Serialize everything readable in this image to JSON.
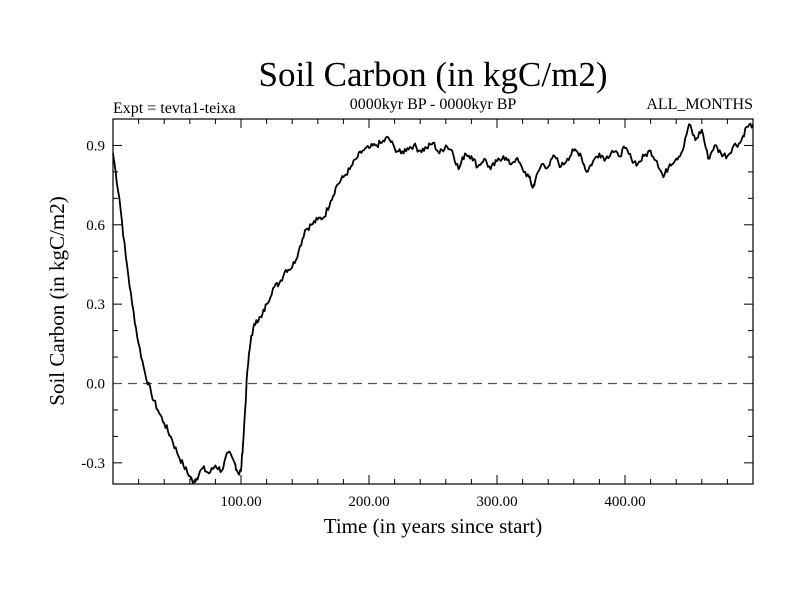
{
  "chart_data": {
    "type": "line",
    "title": "Soil Carbon (in kgC/m2)",
    "header_left": "Expt = tevta1-teixa",
    "header_center": "0000kyr BP - 0000kyr BP",
    "header_right": "ALL_MONTHS",
    "xlabel": "Time (in years since start)",
    "ylabel": "Soil Carbon (in kgC/m2)",
    "xlim": [
      0,
      500
    ],
    "ylim": [
      -0.38,
      1.0
    ],
    "x_ticks": [
      100,
      200,
      300,
      400
    ],
    "x_tick_labels": [
      "100.00",
      "200.00",
      "300.00",
      "400.00"
    ],
    "y_ticks": [
      -0.3,
      0.0,
      0.3,
      0.6,
      0.9
    ],
    "y_tick_labels": [
      "-0.3",
      "0.0",
      "0.3",
      "0.6",
      "0.9"
    ],
    "reference_line": {
      "y": 0.0,
      "style": "dashed"
    },
    "series": [
      {
        "name": "Soil Carbon",
        "x": [
          0,
          5,
          10,
          15,
          20,
          25,
          30,
          35,
          40,
          45,
          50,
          55,
          60,
          62,
          65,
          70,
          75,
          80,
          85,
          90,
          95,
          98,
          100,
          102,
          105,
          108,
          112,
          116,
          120,
          125,
          130,
          135,
          140,
          145,
          150,
          155,
          160,
          165,
          170,
          175,
          180,
          185,
          190,
          195,
          200,
          205,
          210,
          215,
          220,
          225,
          230,
          235,
          240,
          245,
          250,
          255,
          260,
          265,
          270,
          275,
          280,
          285,
          290,
          295,
          300,
          305,
          310,
          315,
          320,
          325,
          328,
          330,
          335,
          340,
          345,
          350,
          355,
          360,
          365,
          370,
          375,
          380,
          385,
          390,
          395,
          400,
          405,
          410,
          415,
          420,
          425,
          430,
          435,
          440,
          445,
          450,
          455,
          460,
          465,
          470,
          475,
          480,
          485,
          490,
          495,
          500
        ],
        "values": [
          0.87,
          0.7,
          0.48,
          0.3,
          0.15,
          0.04,
          -0.04,
          -0.1,
          -0.15,
          -0.2,
          -0.26,
          -0.31,
          -0.35,
          -0.37,
          -0.36,
          -0.32,
          -0.34,
          -0.31,
          -0.33,
          -0.26,
          -0.3,
          -0.34,
          -0.33,
          -0.2,
          0.05,
          0.18,
          0.24,
          0.25,
          0.3,
          0.36,
          0.38,
          0.43,
          0.44,
          0.5,
          0.58,
          0.6,
          0.62,
          0.63,
          0.69,
          0.75,
          0.78,
          0.81,
          0.85,
          0.88,
          0.89,
          0.9,
          0.91,
          0.93,
          0.89,
          0.87,
          0.89,
          0.9,
          0.88,
          0.89,
          0.91,
          0.87,
          0.9,
          0.88,
          0.81,
          0.87,
          0.86,
          0.82,
          0.85,
          0.81,
          0.84,
          0.86,
          0.83,
          0.85,
          0.81,
          0.78,
          0.74,
          0.77,
          0.83,
          0.82,
          0.86,
          0.82,
          0.85,
          0.88,
          0.87,
          0.8,
          0.84,
          0.87,
          0.85,
          0.88,
          0.86,
          0.89,
          0.85,
          0.83,
          0.86,
          0.88,
          0.84,
          0.78,
          0.83,
          0.85,
          0.88,
          0.98,
          0.92,
          0.96,
          0.85,
          0.9,
          0.87,
          0.86,
          0.9,
          0.91,
          0.97,
          0.98
        ]
      }
    ]
  }
}
